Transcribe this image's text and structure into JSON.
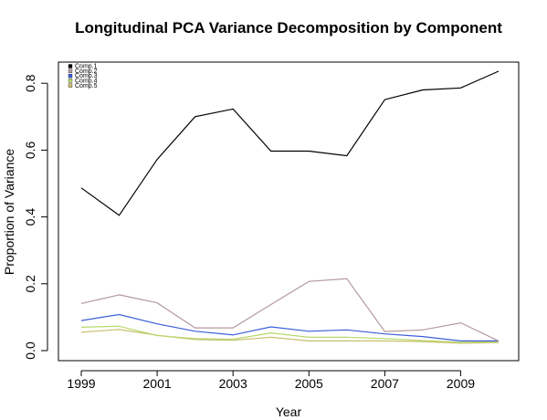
{
  "chart_data": {
    "type": "line",
    "title": "Longitudinal PCA Variance Decomposition by Component",
    "xlabel": "Year",
    "ylabel": "Proportion of Variance",
    "x": [
      1999,
      2000,
      2001,
      2002,
      2003,
      2004,
      2005,
      2006,
      2007,
      2008,
      2009,
      2010
    ],
    "xlim": [
      1999,
      2010
    ],
    "ylim": [
      0,
      0.84
    ],
    "x_ticks": [
      "1999",
      "2001",
      "2003",
      "2005",
      "2007",
      "2009"
    ],
    "y_ticks": [
      "0.0",
      "0.2",
      "0.4",
      "0.6",
      "0.8"
    ],
    "legend_position": "top-left",
    "grid": false,
    "series": [
      {
        "name": "Comp.1",
        "color": "#000000",
        "values": [
          0.487,
          0.405,
          0.572,
          0.7,
          0.723,
          0.597,
          0.597,
          0.583,
          0.751,
          0.78,
          0.786,
          0.836
        ]
      },
      {
        "name": "Comp.2",
        "color": "#b49a9e",
        "values": [
          0.141,
          0.167,
          0.143,
          0.068,
          0.068,
          0.138,
          0.207,
          0.215,
          0.057,
          0.062,
          0.083,
          0.029
        ]
      },
      {
        "name": "Comp.3",
        "color": "#3a5fd8",
        "values": [
          0.09,
          0.108,
          0.08,
          0.058,
          0.047,
          0.071,
          0.058,
          0.062,
          0.05,
          0.042,
          0.029,
          0.029
        ]
      },
      {
        "name": "Comp.4",
        "color": "#b8d86a",
        "values": [
          0.07,
          0.073,
          0.045,
          0.036,
          0.034,
          0.053,
          0.04,
          0.04,
          0.036,
          0.03,
          0.025,
          0.027
        ]
      },
      {
        "name": "Comp.5",
        "color": "#c8c070",
        "values": [
          0.055,
          0.063,
          0.046,
          0.033,
          0.031,
          0.04,
          0.029,
          0.029,
          0.029,
          0.027,
          0.022,
          0.024
        ]
      }
    ]
  }
}
